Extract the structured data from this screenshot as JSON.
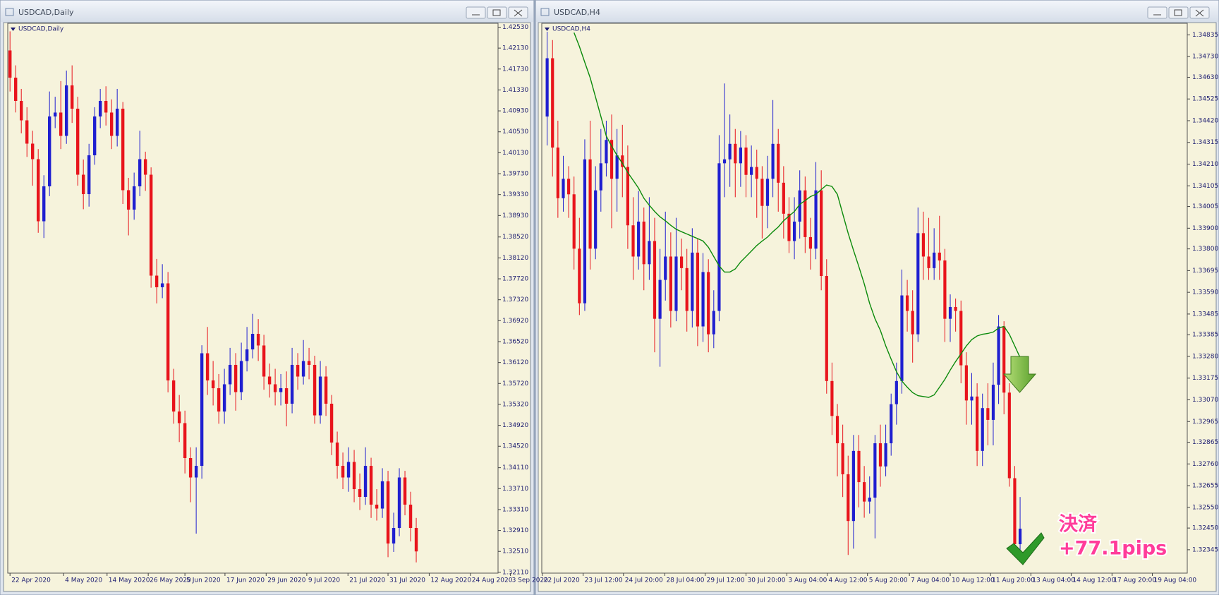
{
  "chart_data": [
    {
      "type": "candlestick",
      "window_title": "USDCAD,Daily",
      "title": "USDCAD,Daily",
      "up_color": "#1f1fd0",
      "down_color": "#e8141c",
      "open": [
        1.42085,
        1.41565,
        1.4112,
        1.40749,
        1.40304,
        1.40007,
        1.3882,
        1.39488,
        1.40823,
        1.40898,
        1.40452,
        1.41417,
        1.40972,
        1.3971,
        1.39339,
        1.40081,
        1.40823,
        1.4112,
        1.40898,
        1.40452,
        1.40972,
        1.39414,
        1.39043,
        1.39488,
        1.40007,
        1.3971,
        1.37781,
        1.37559,
        1.37633,
        1.35778,
        1.35184,
        1.34962,
        1.34294,
        1.33923,
        1.34145,
        1.36297,
        1.35778,
        1.35629,
        1.35184,
        1.35704,
        1.36075,
        1.35555,
        1.36149,
        1.36371,
        1.36668,
        1.36446,
        1.35852,
        1.35704,
        1.35555,
        1.35629,
        1.35333,
        1.36075,
        1.35852,
        1.36149,
        1.36075,
        1.3511,
        1.35852,
        1.35333,
        1.34591,
        1.34145,
        1.33923,
        1.3422,
        1.337,
        1.33552,
        1.34145,
        1.33404,
        1.33329,
        1.33849,
        1.32661,
        1.32958,
        1.33923,
        1.33404,
        1.32958
      ],
      "high": [
        1.4245,
        1.418,
        1.4135,
        1.41,
        1.4055,
        1.402,
        1.397,
        1.413,
        1.412,
        1.415,
        1.417,
        1.418,
        1.412,
        1.4,
        1.403,
        1.41,
        1.4135,
        1.414,
        1.4115,
        1.4135,
        1.411,
        1.3965,
        1.3975,
        1.4055,
        1.4015,
        1.3985,
        1.381,
        1.38,
        1.3785,
        1.36,
        1.355,
        1.352,
        1.345,
        1.345,
        1.3645,
        1.368,
        1.3615,
        1.359,
        1.36,
        1.364,
        1.363,
        1.365,
        1.368,
        1.3705,
        1.3695,
        1.3665,
        1.361,
        1.36,
        1.359,
        1.3595,
        1.364,
        1.363,
        1.3655,
        1.364,
        1.3625,
        1.3615,
        1.3605,
        1.355,
        1.348,
        1.344,
        1.345,
        1.3445,
        1.34,
        1.345,
        1.343,
        1.337,
        1.341,
        1.3405,
        1.3325,
        1.341,
        1.3405,
        1.3365,
        1.3315
      ],
      "low": [
        1.413,
        1.409,
        1.405,
        1.4005,
        1.395,
        1.386,
        1.385,
        1.393,
        1.406,
        1.402,
        1.403,
        1.407,
        1.395,
        1.3905,
        1.391,
        1.399,
        1.406,
        1.4065,
        1.402,
        1.4025,
        1.3915,
        1.3855,
        1.3885,
        1.393,
        1.394,
        1.3755,
        1.3725,
        1.3735,
        1.3555,
        1.3495,
        1.346,
        1.34,
        1.3345,
        1.3285,
        1.339,
        1.355,
        1.353,
        1.3495,
        1.3495,
        1.355,
        1.352,
        1.354,
        1.3595,
        1.362,
        1.3615,
        1.356,
        1.3545,
        1.353,
        1.353,
        1.349,
        1.3515,
        1.356,
        1.357,
        1.358,
        1.3495,
        1.3495,
        1.351,
        1.3435,
        1.339,
        1.337,
        1.3365,
        1.3345,
        1.333,
        1.334,
        1.3315,
        1.331,
        1.3315,
        1.324,
        1.325,
        1.328,
        1.332,
        1.327,
        1.323
      ],
      "close": [
        1.41565,
        1.4112,
        1.40749,
        1.40304,
        1.40007,
        1.3882,
        1.39488,
        1.40823,
        1.40898,
        1.40452,
        1.41417,
        1.40972,
        1.3971,
        1.39339,
        1.40081,
        1.40823,
        1.4112,
        1.40898,
        1.40452,
        1.40972,
        1.39414,
        1.39043,
        1.39488,
        1.40007,
        1.3971,
        1.37781,
        1.37559,
        1.37633,
        1.35778,
        1.35184,
        1.34962,
        1.34294,
        1.33923,
        1.34145,
        1.36297,
        1.35778,
        1.35629,
        1.35184,
        1.35704,
        1.36075,
        1.35555,
        1.36149,
        1.36371,
        1.36668,
        1.36446,
        1.35852,
        1.35704,
        1.35555,
        1.35629,
        1.35333,
        1.36075,
        1.35852,
        1.36149,
        1.36075,
        1.3511,
        1.35852,
        1.35333,
        1.34591,
        1.34145,
        1.33923,
        1.3422,
        1.337,
        1.33552,
        1.34145,
        1.33404,
        1.33329,
        1.33849,
        1.32661,
        1.32958,
        1.33923,
        1.33404,
        1.32958,
        1.3251
      ],
      "ylim": [
        1.32095,
        1.42604
      ],
      "xlim": [
        -0.4,
        86.5
      ],
      "yticks": [
        {
          "value": 1.4253,
          "label": "1.42530"
        },
        {
          "value": 1.4213,
          "label": "1.42130"
        },
        {
          "value": 1.4173,
          "label": "1.41730"
        },
        {
          "value": 1.4133,
          "label": "1.41330"
        },
        {
          "value": 1.4093,
          "label": "1.40930"
        },
        {
          "value": 1.4053,
          "label": "1.40530"
        },
        {
          "value": 1.4013,
          "label": "1.40130"
        },
        {
          "value": 1.3973,
          "label": "1.39730"
        },
        {
          "value": 1.3933,
          "label": "1.39330"
        },
        {
          "value": 1.3893,
          "label": "1.38930"
        },
        {
          "value": 1.3852,
          "label": "1.38520"
        },
        {
          "value": 1.3812,
          "label": "1.38120"
        },
        {
          "value": 1.3772,
          "label": "1.37720"
        },
        {
          "value": 1.3732,
          "label": "1.37320"
        },
        {
          "value": 1.3692,
          "label": "1.36920"
        },
        {
          "value": 1.3652,
          "label": "1.36520"
        },
        {
          "value": 1.3612,
          "label": "1.36120"
        },
        {
          "value": 1.3572,
          "label": "1.35720"
        },
        {
          "value": 1.3532,
          "label": "1.35320"
        },
        {
          "value": 1.3492,
          "label": "1.34920"
        },
        {
          "value": 1.3452,
          "label": "1.34520"
        },
        {
          "value": 1.3411,
          "label": "1.34110"
        },
        {
          "value": 1.3371,
          "label": "1.33710"
        },
        {
          "value": 1.3331,
          "label": "1.33310"
        },
        {
          "value": 1.3291,
          "label": "1.32910"
        },
        {
          "value": 1.3251,
          "label": "1.32510"
        },
        {
          "value": 1.3211,
          "label": "1.32110"
        }
      ],
      "xticks": [
        {
          "value": 0,
          "label": "22 Apr 2020"
        },
        {
          "value": 9.5,
          "label": "4 May 2020"
        },
        {
          "value": 17.2,
          "label": "14 May 2020"
        },
        {
          "value": 24.5,
          "label": "26 May 2020"
        },
        {
          "value": 31,
          "label": "5 Jun 2020"
        },
        {
          "value": 38.1,
          "label": "17 Jun 2020"
        },
        {
          "value": 45.4,
          "label": "29 Jun 2020"
        },
        {
          "value": 52.6,
          "label": "9 Jul 2020"
        },
        {
          "value": 59.9,
          "label": "21 Jul 2020"
        },
        {
          "value": 67,
          "label": "31 Jul 2020"
        },
        {
          "value": 74.3,
          "label": "12 Aug 2020"
        },
        {
          "value": 81.6,
          "label": "24 Aug 2020"
        },
        {
          "value": 88.7,
          "label": "3 Sep 2020"
        }
      ]
    },
    {
      "type": "candlestick",
      "window_title": "USDCAD,H4",
      "title": "USDCAD,H4",
      "up_color": "#1f1fd0",
      "down_color": "#e8141c",
      "open": [
        1.3444,
        1.34722,
        1.3429,
        1.34045,
        1.34139,
        1.34064,
        1.33801,
        1.33537,
        1.34233,
        1.33801,
        1.34083,
        1.34214,
        1.34327,
        1.34139,
        1.34252,
        1.34196,
        1.33914,
        1.33763,
        1.33932,
        1.33726,
        1.33838,
        1.33462,
        1.3365,
        1.33763,
        1.335,
        1.33763,
        1.33707,
        1.335,
        1.33782,
        1.33425,
        1.33688,
        1.33387,
        1.335,
        1.34214,
        1.34233,
        1.34308,
        1.34214,
        1.3429,
        1.34158,
        1.34196,
        1.34139,
        1.34008,
        1.34139,
        1.34308,
        1.3412,
        1.3397,
        1.33838,
        1.33932,
        1.34083,
        1.33857,
        1.33801,
        1.34083,
        1.33669,
        1.33161,
        1.32992,
        1.3286,
        1.3271,
        1.32484,
        1.32823,
        1.32672,
        1.32578,
        1.32597,
        1.3286,
        1.32748,
        1.3286,
        1.33049,
        1.33161,
        1.33575,
        1.335,
        1.33387,
        1.33876,
        1.33763,
        1.33707,
        1.33782,
        1.33744,
        1.33462,
        1.33519,
        1.335,
        1.33237,
        1.33067,
        1.33086,
        1.32823,
        1.3303,
        1.32973,
        1.33143,
        1.33425,
        1.33105,
        1.32691,
        1.32372
      ],
      "high": [
        1.3485,
        1.3481,
        1.3442,
        1.3425,
        1.342,
        1.3415,
        1.3395,
        1.3433,
        1.3442,
        1.342,
        1.3438,
        1.3442,
        1.3445,
        1.3438,
        1.344,
        1.343,
        1.3405,
        1.3408,
        1.34,
        1.3405,
        1.3395,
        1.338,
        1.3398,
        1.3388,
        1.3395,
        1.3385,
        1.338,
        1.339,
        1.3385,
        1.3378,
        1.3375,
        1.336,
        1.3435,
        1.346,
        1.3445,
        1.3438,
        1.3437,
        1.3435,
        1.343,
        1.3428,
        1.342,
        1.3425,
        1.3452,
        1.3438,
        1.342,
        1.3405,
        1.3405,
        1.3418,
        1.3415,
        1.3395,
        1.3422,
        1.3418,
        1.3375,
        1.3325,
        1.3305,
        1.3295,
        1.328,
        1.329,
        1.329,
        1.3275,
        1.327,
        1.329,
        1.3295,
        1.3295,
        1.331,
        1.3325,
        1.337,
        1.3365,
        1.336,
        1.34,
        1.3398,
        1.3395,
        1.339,
        1.3396,
        1.338,
        1.3358,
        1.3356,
        1.3355,
        1.333,
        1.332,
        1.3315,
        1.331,
        1.3315,
        1.3325,
        1.3348,
        1.3345,
        1.3315,
        1.3275,
        1.326
      ],
      "low": [
        1.343,
        1.3415,
        1.3395,
        1.3398,
        1.3395,
        1.337,
        1.3348,
        1.335,
        1.337,
        1.3375,
        1.3398,
        1.3415,
        1.339,
        1.3398,
        1.3405,
        1.338,
        1.3365,
        1.337,
        1.336,
        1.3365,
        1.333,
        1.3323,
        1.3355,
        1.3342,
        1.3345,
        1.336,
        1.334,
        1.3342,
        1.3333,
        1.3335,
        1.333,
        1.3332,
        1.3345,
        1.3405,
        1.341,
        1.3405,
        1.341,
        1.3405,
        1.3405,
        1.3395,
        1.3385,
        1.339,
        1.3405,
        1.3398,
        1.3385,
        1.3378,
        1.3375,
        1.3385,
        1.3378,
        1.337,
        1.3375,
        1.336,
        1.331,
        1.329,
        1.327,
        1.326,
        1.3232,
        1.3235,
        1.3255,
        1.325,
        1.3252,
        1.324,
        1.3265,
        1.327,
        1.328,
        1.3295,
        1.331,
        1.334,
        1.3325,
        1.3335,
        1.3365,
        1.3365,
        1.3365,
        1.3365,
        1.3335,
        1.3335,
        1.334,
        1.3315,
        1.3295,
        1.3295,
        1.3275,
        1.3275,
        1.3285,
        1.3285,
        1.3305,
        1.33,
        1.3265,
        1.3232,
        1.3234
      ],
      "close": [
        1.34722,
        1.3429,
        1.34045,
        1.34139,
        1.34064,
        1.33801,
        1.33537,
        1.34233,
        1.33801,
        1.34083,
        1.34214,
        1.34327,
        1.34139,
        1.34252,
        1.34196,
        1.33914,
        1.33763,
        1.33932,
        1.33726,
        1.33838,
        1.33462,
        1.3365,
        1.33763,
        1.335,
        1.33763,
        1.33707,
        1.335,
        1.33782,
        1.33425,
        1.33688,
        1.33387,
        1.335,
        1.34214,
        1.34233,
        1.34308,
        1.34214,
        1.3429,
        1.34158,
        1.34196,
        1.34139,
        1.34008,
        1.34139,
        1.34308,
        1.3412,
        1.3397,
        1.33838,
        1.33932,
        1.34083,
        1.33857,
        1.33801,
        1.34083,
        1.33669,
        1.33161,
        1.32992,
        1.3286,
        1.3271,
        1.32484,
        1.32823,
        1.32672,
        1.32578,
        1.32597,
        1.3286,
        1.32748,
        1.3286,
        1.33049,
        1.33161,
        1.33575,
        1.335,
        1.33387,
        1.33876,
        1.33763,
        1.33707,
        1.33782,
        1.33744,
        1.33462,
        1.33519,
        1.335,
        1.33237,
        1.33067,
        1.33086,
        1.32823,
        1.3303,
        1.32973,
        1.33143,
        1.33425,
        1.33105,
        1.32691,
        1.32372,
        1.32447
      ],
      "moving_average": {
        "color": "#0b8a0b",
        "values": [
          null,
          null,
          null,
          null,
          null,
          1.34846,
          1.34779,
          1.34703,
          1.34628,
          1.34534,
          1.3444,
          1.34346,
          1.34297,
          1.34252,
          1.34214,
          1.34169,
          1.34132,
          1.34094,
          1.34045,
          1.34011,
          1.33981,
          1.33955,
          1.33936,
          1.33914,
          1.33895,
          1.33883,
          1.33872,
          1.33861,
          1.3385,
          1.33838,
          1.33808,
          1.33763,
          1.33718,
          1.33688,
          1.33688,
          1.33703,
          1.33737,
          1.33763,
          1.33789,
          1.33816,
          1.33838,
          1.33857,
          1.33883,
          1.33906,
          1.33936,
          1.33959,
          1.33981,
          1.34015,
          1.34034,
          1.34053,
          1.34064,
          1.34087,
          1.34109,
          1.34102,
          1.34064,
          1.3397,
          1.33876,
          1.33793,
          1.33714,
          1.33631,
          1.33537,
          1.33462,
          1.33406,
          1.33331,
          1.33267,
          1.33206,
          1.33161,
          1.33131,
          1.33105,
          1.3309,
          1.33086,
          1.33082,
          1.33094,
          1.33131,
          1.33169,
          1.33214,
          1.33255,
          1.33293,
          1.33331,
          1.33361,
          1.33379,
          1.33387,
          1.33391,
          1.33398,
          1.33417,
          1.33425,
          1.33387,
          1.33331,
          1.33274
        ]
      },
      "annotations": [
        "決済",
        "+77.1pips"
      ],
      "ylim": [
        1.32232,
        1.34891
      ],
      "xlim": [
        -1,
        119.1
      ],
      "yticks": [
        1.34835,
        {
          "value": 1.3473,
          "label": "1.34730"
        },
        {
          "value": 1.3463,
          "label": "1.34630"
        },
        1.34525,
        {
          "value": 1.3442,
          "label": "1.34420"
        },
        1.34315,
        {
          "value": 1.3421,
          "label": "1.34210"
        },
        1.34105,
        1.34005,
        {
          "value": 1.339,
          "label": "1.33900"
        },
        {
          "value": 1.338,
          "label": "1.33800"
        },
        1.33695,
        {
          "value": 1.3359,
          "label": "1.33590"
        },
        1.33485,
        1.33385,
        {
          "value": 1.3328,
          "label": "1.33280"
        },
        1.33175,
        {
          "value": 1.3307,
          "label": "1.33070"
        },
        1.32965,
        1.32865,
        {
          "value": 1.3276,
          "label": "1.32760"
        },
        1.32655,
        {
          "value": 1.3255,
          "label": "1.32550"
        },
        {
          "value": 1.3245,
          "label": "1.32450"
        },
        1.32345
      ],
      "xticks": [
        {
          "value": -0.9,
          "label": "22 Jul 2020"
        },
        {
          "value": 6.7,
          "label": "23 Jul 12:00"
        },
        {
          "value": 14.2,
          "label": "24 Jul 20:00"
        },
        {
          "value": 21.9,
          "label": "28 Jul 04:00"
        },
        {
          "value": 29.4,
          "label": "29 Jul 12:00"
        },
        {
          "value": 37,
          "label": "30 Jul 20:00"
        },
        {
          "value": 44.6,
          "label": "3 Aug 04:00"
        },
        {
          "value": 52.1,
          "label": "4 Aug 12:00"
        },
        {
          "value": 59.6,
          "label": "5 Aug 20:00"
        },
        {
          "value": 67.4,
          "label": "7 Aug 04:00"
        },
        {
          "value": 75,
          "label": "10 Aug 12:00"
        },
        {
          "value": 82.5,
          "label": "11 Aug 20:00"
        },
        {
          "value": 90,
          "label": "13 Aug 04:00"
        },
        {
          "value": 97.5,
          "label": "14 Aug 12:00"
        },
        {
          "value": 105.1,
          "label": "17 Aug 20:00"
        },
        {
          "value": 112.6,
          "label": "19 Aug 04:00"
        }
      ]
    }
  ]
}
